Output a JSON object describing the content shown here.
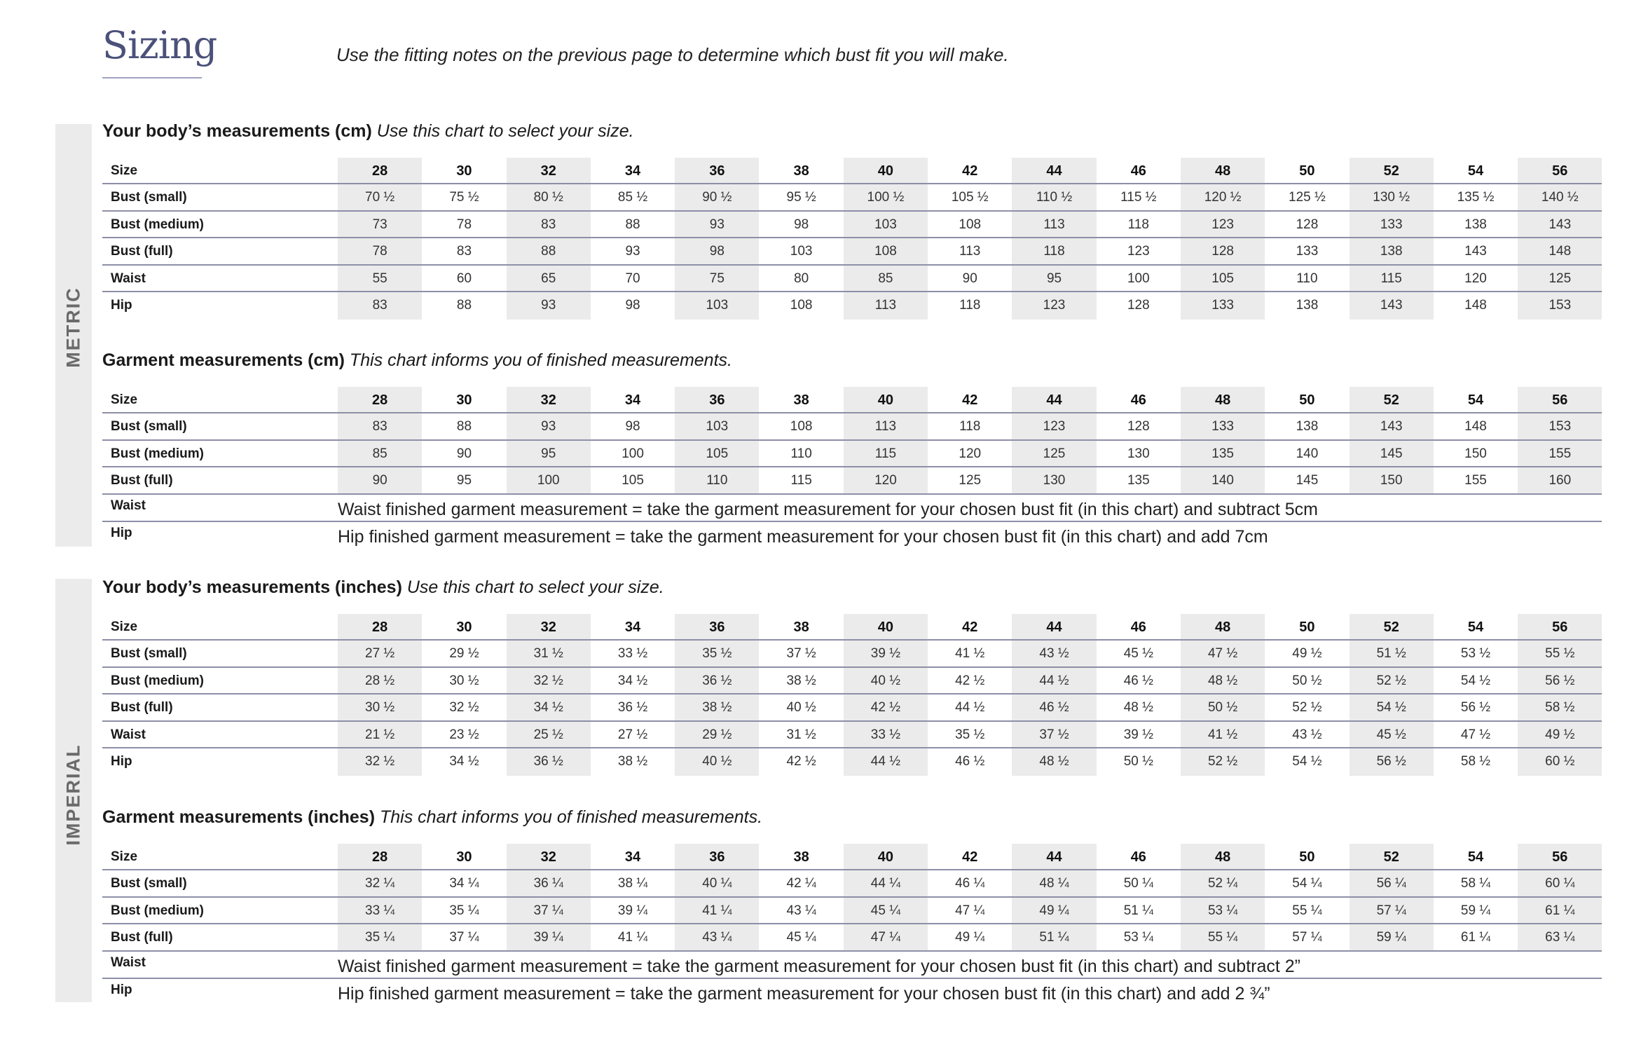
{
  "header": {
    "title": "Sizing",
    "intro": "Use the fitting notes on the previous page to determine which bust fit you will make."
  },
  "bands": {
    "metric": "METRIC",
    "imperial": "IMPERIAL"
  },
  "colors": {
    "title": "#4b5179",
    "shade": "#ebebeb",
    "rule": "#8d8fa8"
  },
  "sections": [
    {
      "title_bold": "Your body’s measurements (cm)",
      "title_italic": "Use this chart to select your size.",
      "header_label": "Size",
      "sizes": [
        "28",
        "30",
        "32",
        "34",
        "36",
        "38",
        "40",
        "42",
        "44",
        "46",
        "48",
        "50",
        "52",
        "54",
        "56"
      ],
      "rows": [
        {
          "label": "Bust (small)",
          "values": [
            "70 ½",
            "75 ½",
            "80 ½",
            "85 ½",
            "90 ½",
            "95 ½",
            "100 ½",
            "105 ½",
            "110 ½",
            "115 ½",
            "120 ½",
            "125 ½",
            "130 ½",
            "135 ½",
            "140 ½"
          ]
        },
        {
          "label": "Bust (medium)",
          "values": [
            "73",
            "78",
            "83",
            "88",
            "93",
            "98",
            "103",
            "108",
            "113",
            "118",
            "123",
            "128",
            "133",
            "138",
            "143"
          ]
        },
        {
          "label": "Bust (full)",
          "values": [
            "78",
            "83",
            "88",
            "93",
            "98",
            "103",
            "108",
            "113",
            "118",
            "123",
            "128",
            "133",
            "138",
            "143",
            "148"
          ]
        },
        {
          "label": "Waist",
          "values": [
            "55",
            "60",
            "65",
            "70",
            "75",
            "80",
            "85",
            "90",
            "95",
            "100",
            "105",
            "110",
            "115",
            "120",
            "125"
          ]
        },
        {
          "label": "Hip",
          "values": [
            "83",
            "88",
            "93",
            "98",
            "103",
            "108",
            "113",
            "118",
            "123",
            "128",
            "133",
            "138",
            "143",
            "148",
            "153"
          ]
        }
      ],
      "notes": []
    },
    {
      "title_bold": "Garment measurements (cm)",
      "title_italic": "This chart informs you of finished measurements.",
      "header_label": "Size",
      "sizes": [
        "28",
        "30",
        "32",
        "34",
        "36",
        "38",
        "40",
        "42",
        "44",
        "46",
        "48",
        "50",
        "52",
        "54",
        "56"
      ],
      "rows": [
        {
          "label": "Bust (small)",
          "values": [
            "83",
            "88",
            "93",
            "98",
            "103",
            "108",
            "113",
            "118",
            "123",
            "128",
            "133",
            "138",
            "143",
            "148",
            "153"
          ]
        },
        {
          "label": "Bust (medium)",
          "values": [
            "85",
            "90",
            "95",
            "100",
            "105",
            "110",
            "115",
            "120",
            "125",
            "130",
            "135",
            "140",
            "145",
            "150",
            "155"
          ]
        },
        {
          "label": "Bust (full)",
          "values": [
            "90",
            "95",
            "100",
            "105",
            "110",
            "115",
            "120",
            "125",
            "130",
            "135",
            "140",
            "145",
            "150",
            "155",
            "160"
          ]
        }
      ],
      "notes": [
        {
          "label": "Waist",
          "text": "Waist finished garment measurement = take the garment measurement for your chosen bust fit (in this chart) and subtract 5cm"
        },
        {
          "label": "Hip",
          "text": "Hip finished garment measurement = take the garment measurement for your chosen bust fit (in this chart) and add 7cm"
        }
      ]
    },
    {
      "title_bold": "Your body’s measurements (inches)",
      "title_italic": "Use this chart to select your size.",
      "header_label": "Size",
      "sizes": [
        "28",
        "30",
        "32",
        "34",
        "36",
        "38",
        "40",
        "42",
        "44",
        "46",
        "48",
        "50",
        "52",
        "54",
        "56"
      ],
      "rows": [
        {
          "label": "Bust (small)",
          "values": [
            "27 ½",
            "29 ½",
            "31 ½",
            "33 ½",
            "35 ½",
            "37 ½",
            "39 ½",
            "41 ½",
            "43 ½",
            "45 ½",
            "47 ½",
            "49 ½",
            "51 ½",
            "53 ½",
            "55 ½"
          ]
        },
        {
          "label": "Bust (medium)",
          "values": [
            "28 ½",
            "30 ½",
            "32 ½",
            "34 ½",
            "36 ½",
            "38 ½",
            "40 ½",
            "42 ½",
            "44 ½",
            "46 ½",
            "48 ½",
            "50 ½",
            "52 ½",
            "54 ½",
            "56 ½"
          ]
        },
        {
          "label": "Bust (full)",
          "values": [
            "30 ½",
            "32 ½",
            "34 ½",
            "36 ½",
            "38 ½",
            "40 ½",
            "42 ½",
            "44 ½",
            "46 ½",
            "48 ½",
            "50 ½",
            "52 ½",
            "54 ½",
            "56 ½",
            "58 ½"
          ]
        },
        {
          "label": "Waist",
          "values": [
            "21 ½",
            "23 ½",
            "25 ½",
            "27 ½",
            "29 ½",
            "31 ½",
            "33 ½",
            "35 ½",
            "37 ½",
            "39 ½",
            "41 ½",
            "43 ½",
            "45 ½",
            "47 ½",
            "49 ½"
          ]
        },
        {
          "label": "Hip",
          "values": [
            "32 ½",
            "34 ½",
            "36 ½",
            "38 ½",
            "40 ½",
            "42 ½",
            "44 ½",
            "46 ½",
            "48 ½",
            "50 ½",
            "52 ½",
            "54 ½",
            "56 ½",
            "58 ½",
            "60 ½"
          ]
        }
      ],
      "notes": []
    },
    {
      "title_bold": "Garment measurements (inches)",
      "title_italic": "This chart informs you of finished measurements.",
      "header_label": "Size",
      "sizes": [
        "28",
        "30",
        "32",
        "34",
        "36",
        "38",
        "40",
        "42",
        "44",
        "46",
        "48",
        "50",
        "52",
        "54",
        "56"
      ],
      "rows": [
        {
          "label": "Bust (small)",
          "values": [
            "32 ¼",
            "34 ¼",
            "36 ¼",
            "38 ¼",
            "40 ¼",
            "42 ¼",
            "44 ¼",
            "46 ¼",
            "48 ¼",
            "50 ¼",
            "52 ¼",
            "54 ¼",
            "56 ¼",
            "58 ¼",
            "60 ¼"
          ]
        },
        {
          "label": "Bust (medium)",
          "values": [
            "33 ¼",
            "35 ¼",
            "37 ¼",
            "39 ¼",
            "41 ¼",
            "43 ¼",
            "45 ¼",
            "47 ¼",
            "49 ¼",
            "51 ¼",
            "53 ¼",
            "55 ¼",
            "57 ¼",
            "59 ¼",
            "61 ¼"
          ]
        },
        {
          "label": "Bust (full)",
          "values": [
            "35 ¼",
            "37 ¼",
            "39 ¼",
            "41 ¼",
            "43 ¼",
            "45 ¼",
            "47 ¼",
            "49 ¼",
            "51 ¼",
            "53 ¼",
            "55 ¼",
            "57 ¼",
            "59 ¼",
            "61 ¼",
            "63 ¼"
          ]
        }
      ],
      "notes": [
        {
          "label": "Waist",
          "text": "Waist finished garment measurement = take the garment measurement for your chosen bust fit (in this chart) and subtract 2”"
        },
        {
          "label": "Hip",
          "text": "Hip finished garment measurement = take the garment measurement for your chosen bust fit (in this chart) and add 2 ¾”"
        }
      ]
    }
  ]
}
